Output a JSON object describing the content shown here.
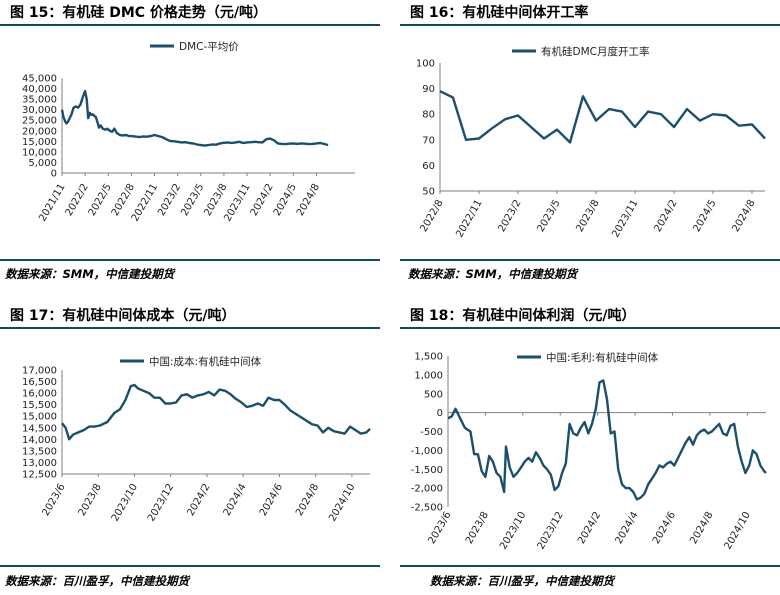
{
  "colors": {
    "series": "#1b4f6b",
    "rule": "#0f4c5c",
    "axis": "#7f7f7f"
  },
  "panels": [
    {
      "title": "图 15：有机硅 DMC 价格走势（元/吨）",
      "source": "数据来源：SMM，中信建投期货"
    },
    {
      "title": "图 16：有机硅中间体开工率",
      "source": "数据来源：SMM，中信建投期货"
    },
    {
      "title": "图 17：有机硅中间体成本（元/吨）",
      "source": "数据来源：百川盈孚，中信建投期货"
    },
    {
      "title": "图 18：有机硅中间体利润（元/吨）",
      "source": "数据来源：百川盈孚，中信建投期货"
    }
  ],
  "chart_data": [
    {
      "type": "line",
      "legend": "DMC-平均价",
      "ylim": [
        0,
        45000
      ],
      "yticks": [
        "0",
        "5,000",
        "10,000",
        "15,000",
        "20,000",
        "25,000",
        "30,000",
        "35,000",
        "40,000",
        "45,000"
      ],
      "xlim": [
        0,
        38
      ],
      "xticks": [
        {
          "v": 0,
          "label": "2021/11"
        },
        {
          "v": 3,
          "label": "2022/2"
        },
        {
          "v": 6,
          "label": "2022/5"
        },
        {
          "v": 9,
          "label": "2022/8"
        },
        {
          "v": 12,
          "label": "2022/11"
        },
        {
          "v": 15,
          "label": "2023/2"
        },
        {
          "v": 18,
          "label": "2023/5"
        },
        {
          "v": 21,
          "label": "2023/8"
        },
        {
          "v": 24,
          "label": "2023/11"
        },
        {
          "v": 27,
          "label": "2024/2"
        },
        {
          "v": 30,
          "label": "2024/5"
        },
        {
          "v": 33,
          "label": "2024/8"
        }
      ],
      "x": [
        0,
        0.2,
        0.4,
        0.6,
        0.8,
        1.0,
        1.2,
        1.5,
        1.8,
        2.1,
        2.4,
        2.7,
        3.0,
        3.2,
        3.4,
        3.6,
        3.8,
        4.0,
        4.2,
        4.4,
        4.6,
        4.8,
        5.0,
        5.3,
        5.6,
        5.9,
        6.2,
        6.5,
        6.8,
        7.1,
        7.5,
        7.9,
        8.3,
        8.7,
        9.0,
        9.5,
        10,
        10.5,
        11,
        11.5,
        12,
        12.5,
        13,
        13.5,
        14,
        14.5,
        15,
        15.5,
        16,
        16.5,
        17,
        17.5,
        18,
        18.5,
        19,
        19.5,
        20,
        20.5,
        21,
        21.5,
        22,
        22.5,
        23,
        23.5,
        24,
        24.5,
        25,
        25.5,
        26,
        26.5,
        27,
        27.5,
        28,
        28.5,
        29,
        29.5,
        30,
        30.5,
        31,
        31.5,
        32,
        32.5,
        33,
        33.5,
        34,
        34.5
      ],
      "values": [
        30000,
        26500,
        24500,
        23500,
        24500,
        26000,
        27500,
        31000,
        31500,
        31000,
        32500,
        36000,
        38800,
        35000,
        26000,
        28500,
        27500,
        27800,
        27000,
        26500,
        24000,
        21500,
        22500,
        21000,
        20500,
        21000,
        20000,
        19500,
        21000,
        19000,
        18000,
        17800,
        18000,
        17500,
        17500,
        17300,
        17000,
        17300,
        17200,
        17500,
        18000,
        17500,
        17000,
        16000,
        15200,
        15000,
        14800,
        14500,
        14600,
        14200,
        14000,
        13500,
        13200,
        13000,
        13200,
        13500,
        13400,
        14000,
        14300,
        14500,
        14200,
        14500,
        14800,
        14200,
        14500,
        14600,
        14800,
        14600,
        14500,
        16000,
        16300,
        15500,
        14000,
        13800,
        13700,
        13900,
        14000,
        13800,
        14000,
        13900,
        13700,
        13800,
        14000,
        14200,
        13800,
        13200
      ]
    },
    {
      "type": "line",
      "legend": "有机硅DMC月度开工率",
      "ylim": [
        50,
        100
      ],
      "yticks": [
        "50",
        "60",
        "70",
        "80",
        "90",
        "100"
      ],
      "xlim": [
        0,
        25
      ],
      "xticks": [
        {
          "v": 0,
          "label": "2022/8"
        },
        {
          "v": 3,
          "label": "2022/11"
        },
        {
          "v": 6,
          "label": "2023/2"
        },
        {
          "v": 9,
          "label": "2023/5"
        },
        {
          "v": 12,
          "label": "2023/8"
        },
        {
          "v": 15,
          "label": "2023/11"
        },
        {
          "v": 18,
          "label": "2024/2"
        },
        {
          "v": 21,
          "label": "2024/5"
        },
        {
          "v": 24,
          "label": "2024/8"
        }
      ],
      "x": [
        0,
        1,
        2,
        3,
        4,
        5,
        6,
        7,
        8,
        9,
        10,
        11,
        12,
        13,
        14,
        15,
        16,
        17,
        18,
        19,
        20,
        21,
        22,
        23,
        24,
        25
      ],
      "values": [
        89,
        86.5,
        70,
        70.5,
        74.5,
        78,
        79.5,
        75,
        70.5,
        74,
        69,
        87,
        77.5,
        82,
        81,
        75,
        81,
        80,
        75,
        82,
        77.5,
        80,
        79.5,
        75.5,
        76,
        70.5
      ]
    },
    {
      "type": "line",
      "legend": "中国:成本:有机硅中间体",
      "ylim": [
        12500,
        17000
      ],
      "yticks": [
        "12,500",
        "13,000",
        "13,500",
        "14,000",
        "14,500",
        "15,000",
        "15,500",
        "16,000",
        "16,500",
        "17,000"
      ],
      "xlim": [
        0,
        17
      ],
      "xticks": [
        {
          "v": 0,
          "label": "2023/6"
        },
        {
          "v": 2,
          "label": "2023/8"
        },
        {
          "v": 4,
          "label": "2023/10"
        },
        {
          "v": 6,
          "label": "2023/12"
        },
        {
          "v": 8,
          "label": "2024/2"
        },
        {
          "v": 10,
          "label": "2024/4"
        },
        {
          "v": 12,
          "label": "2024/6"
        },
        {
          "v": 14,
          "label": "2024/8"
        },
        {
          "v": 16,
          "label": "2024/10"
        }
      ],
      "x": [
        0,
        0.2,
        0.4,
        0.6,
        0.9,
        1.2,
        1.5,
        1.8,
        2.1,
        2.5,
        2.9,
        3.2,
        3.5,
        3.8,
        4.0,
        4.2,
        4.5,
        4.8,
        5.1,
        5.4,
        5.7,
        6.0,
        6.3,
        6.6,
        6.9,
        7.2,
        7.5,
        7.8,
        8.1,
        8.4,
        8.7,
        9.0,
        9.3,
        9.6,
        9.9,
        10.2,
        10.5,
        10.8,
        11.1,
        11.4,
        11.7,
        12.0,
        12.3,
        12.6,
        12.9,
        13.2,
        13.5,
        13.8,
        14.1,
        14.4,
        14.7,
        15.0,
        15.3,
        15.6,
        15.9,
        16.2,
        16.5,
        16.8,
        17.0
      ],
      "values": [
        14700,
        14500,
        14000,
        14200,
        14300,
        14400,
        14550,
        14550,
        14600,
        14750,
        15150,
        15300,
        15700,
        16300,
        16350,
        16200,
        16100,
        16000,
        15800,
        15800,
        15550,
        15550,
        15600,
        15900,
        15950,
        15800,
        15900,
        15950,
        16050,
        15900,
        16150,
        16100,
        15950,
        15750,
        15600,
        15400,
        15450,
        15550,
        15450,
        15800,
        15700,
        15700,
        15500,
        15250,
        15100,
        14950,
        14800,
        14650,
        14600,
        14300,
        14500,
        14350,
        14300,
        14250,
        14550,
        14400,
        14250,
        14300,
        14450
      ]
    },
    {
      "type": "line",
      "legend": "中国:毛利:有机硅中间体",
      "ylim": [
        -2500,
        1500
      ],
      "yticks": [
        "-2,500",
        "-2,000",
        "-1,500",
        "-1,000",
        "-500",
        "0",
        "500",
        "1,000",
        "1,500"
      ],
      "xlim": [
        0,
        17
      ],
      "xticks": [
        {
          "v": 0,
          "label": "2023/6"
        },
        {
          "v": 2,
          "label": "2023/8"
        },
        {
          "v": 4,
          "label": "2023/10"
        },
        {
          "v": 6,
          "label": "2023/12"
        },
        {
          "v": 8,
          "label": "2024/2"
        },
        {
          "v": 10,
          "label": "2024/4"
        },
        {
          "v": 12,
          "label": "2024/6"
        },
        {
          "v": 14,
          "label": "2024/8"
        },
        {
          "v": 16,
          "label": "2024/10"
        }
      ],
      "x": [
        0,
        0.2,
        0.4,
        0.6,
        0.9,
        1.2,
        1.4,
        1.6,
        1.8,
        2.0,
        2.2,
        2.4,
        2.6,
        2.8,
        3.0,
        3.1,
        3.3,
        3.5,
        3.7,
        3.9,
        4.1,
        4.3,
        4.5,
        4.7,
        4.9,
        5.1,
        5.3,
        5.5,
        5.7,
        5.9,
        6.1,
        6.3,
        6.5,
        6.7,
        6.9,
        7.1,
        7.3,
        7.5,
        7.7,
        7.9,
        8.1,
        8.3,
        8.5,
        8.7,
        8.9,
        9.1,
        9.3,
        9.5,
        9.7,
        9.9,
        10.1,
        10.3,
        10.5,
        10.7,
        10.9,
        11.1,
        11.3,
        11.5,
        11.7,
        11.9,
        12.1,
        12.3,
        12.5,
        12.7,
        12.9,
        13.1,
        13.3,
        13.5,
        13.7,
        13.9,
        14.1,
        14.3,
        14.5,
        14.7,
        14.9,
        15.1,
        15.3,
        15.5,
        15.7,
        15.9,
        16.1,
        16.3,
        16.5,
        16.7,
        16.9,
        17.0
      ],
      "values": [
        -150,
        -100,
        100,
        -100,
        -400,
        -500,
        -1100,
        -1100,
        -1550,
        -1700,
        -1150,
        -1300,
        -1600,
        -1700,
        -2100,
        -900,
        -1450,
        -1700,
        -1600,
        -1450,
        -1300,
        -1200,
        -1300,
        -1050,
        -1200,
        -1400,
        -1500,
        -1650,
        -2050,
        -1950,
        -1600,
        -1350,
        -300,
        -550,
        -600,
        -400,
        -250,
        -550,
        -300,
        100,
        800,
        850,
        350,
        -550,
        -500,
        -1500,
        -1900,
        -2000,
        -2000,
        -2100,
        -2300,
        -2250,
        -2150,
        -1900,
        -1750,
        -1600,
        -1400,
        -1450,
        -1350,
        -1300,
        -1400,
        -1200,
        -1000,
        -800,
        -650,
        -850,
        -600,
        -500,
        -450,
        -550,
        -500,
        -400,
        -300,
        -550,
        -600,
        -350,
        -300,
        -900,
        -1300,
        -1600,
        -1400,
        -1000,
        -1100,
        -1400,
        -1550,
        -1600
      ]
    }
  ]
}
